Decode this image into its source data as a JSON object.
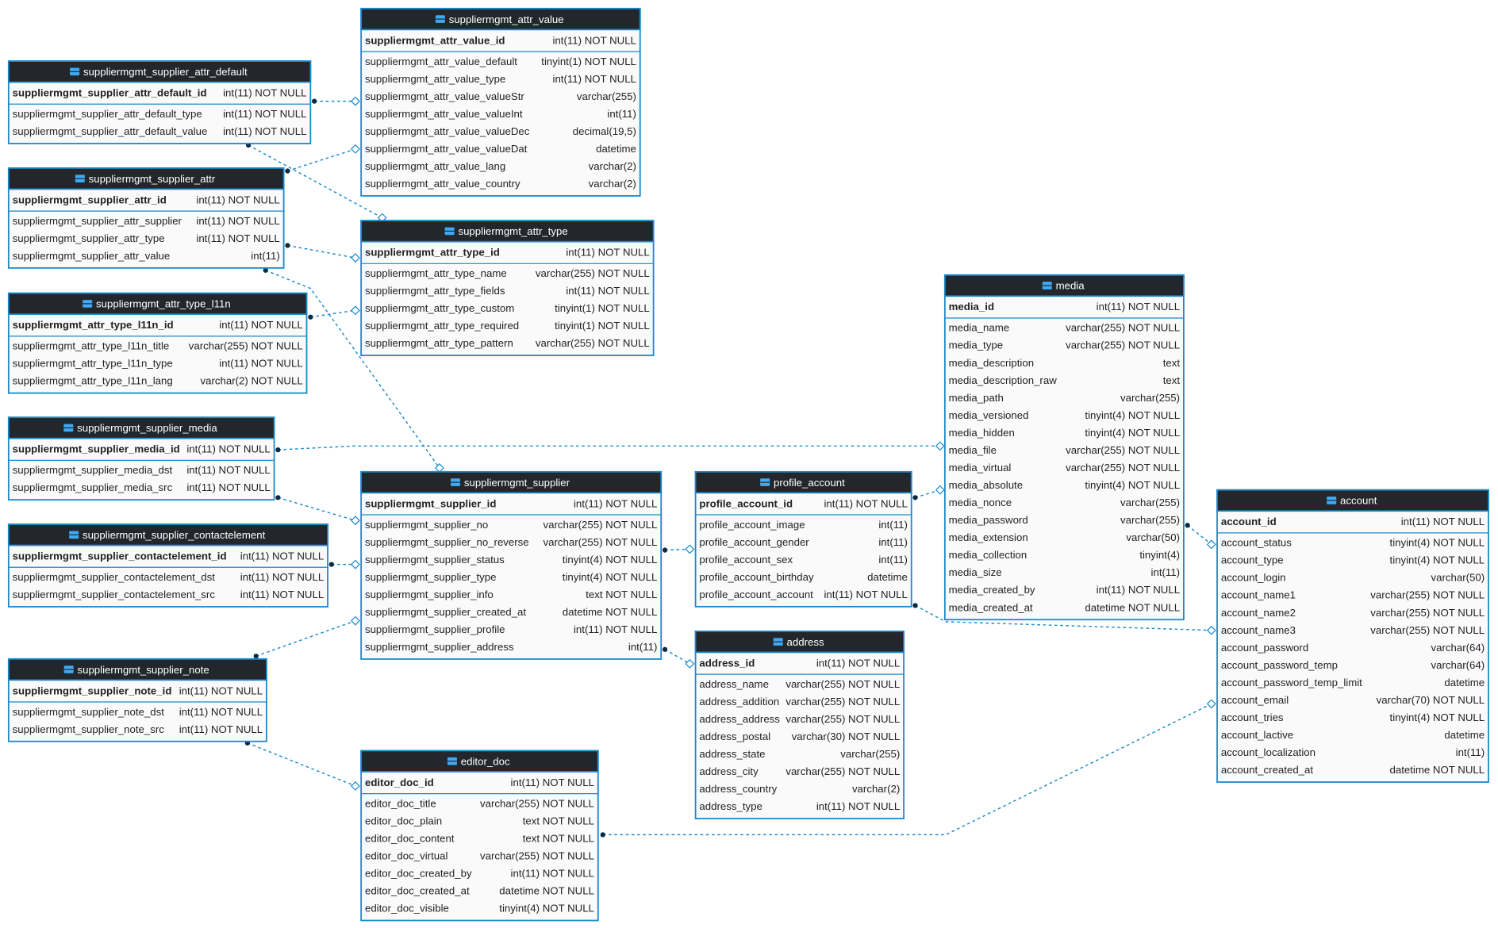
{
  "tables": [
    {
      "name": "suppliermgmt_supplier_attr_default",
      "primary_key": {
        "name": "suppliermgmt_supplier_attr_default_id",
        "type": "int(11) NOT NULL"
      },
      "columns": [
        {
          "name": "suppliermgmt_supplier_attr_default_type",
          "type": "int(11) NOT NULL"
        },
        {
          "name": "suppliermgmt_supplier_attr_default_value",
          "type": "int(11) NOT NULL"
        }
      ]
    },
    {
      "name": "suppliermgmt_attr_value",
      "primary_key": {
        "name": "suppliermgmt_attr_value_id",
        "type": "int(11) NOT NULL"
      },
      "columns": [
        {
          "name": "suppliermgmt_attr_value_default",
          "type": "tinyint(1) NOT NULL"
        },
        {
          "name": "suppliermgmt_attr_value_type",
          "type": "int(11) NOT NULL"
        },
        {
          "name": "suppliermgmt_attr_value_valueStr",
          "type": "varchar(255)"
        },
        {
          "name": "suppliermgmt_attr_value_valueInt",
          "type": "int(11)"
        },
        {
          "name": "suppliermgmt_attr_value_valueDec",
          "type": "decimal(19,5)"
        },
        {
          "name": "suppliermgmt_attr_value_valueDat",
          "type": "datetime"
        },
        {
          "name": "suppliermgmt_attr_value_lang",
          "type": "varchar(2)"
        },
        {
          "name": "suppliermgmt_attr_value_country",
          "type": "varchar(2)"
        }
      ]
    },
    {
      "name": "suppliermgmt_supplier_attr",
      "primary_key": {
        "name": "suppliermgmt_supplier_attr_id",
        "type": "int(11) NOT NULL"
      },
      "columns": [
        {
          "name": "suppliermgmt_supplier_attr_supplier",
          "type": "int(11) NOT NULL"
        },
        {
          "name": "suppliermgmt_supplier_attr_type",
          "type": "int(11) NOT NULL"
        },
        {
          "name": "suppliermgmt_supplier_attr_value",
          "type": "int(11)"
        }
      ]
    },
    {
      "name": "suppliermgmt_attr_type",
      "primary_key": {
        "name": "suppliermgmt_attr_type_id",
        "type": "int(11) NOT NULL"
      },
      "columns": [
        {
          "name": "suppliermgmt_attr_type_name",
          "type": "varchar(255) NOT NULL"
        },
        {
          "name": "suppliermgmt_attr_type_fields",
          "type": "int(11) NOT NULL"
        },
        {
          "name": "suppliermgmt_attr_type_custom",
          "type": "tinyint(1) NOT NULL"
        },
        {
          "name": "suppliermgmt_attr_type_required",
          "type": "tinyint(1) NOT NULL"
        },
        {
          "name": "suppliermgmt_attr_type_pattern",
          "type": "varchar(255) NOT NULL"
        }
      ]
    },
    {
      "name": "suppliermgmt_attr_type_l11n",
      "primary_key": {
        "name": "suppliermgmt_attr_type_l11n_id",
        "type": "int(11) NOT NULL"
      },
      "columns": [
        {
          "name": "suppliermgmt_attr_type_l11n_title",
          "type": "varchar(255) NOT NULL"
        },
        {
          "name": "suppliermgmt_attr_type_l11n_type",
          "type": "int(11) NOT NULL"
        },
        {
          "name": "suppliermgmt_attr_type_l11n_lang",
          "type": "varchar(2) NOT NULL"
        }
      ]
    },
    {
      "name": "suppliermgmt_supplier_media",
      "primary_key": {
        "name": "suppliermgmt_supplier_media_id",
        "type": "int(11) NOT NULL"
      },
      "columns": [
        {
          "name": "suppliermgmt_supplier_media_dst",
          "type": "int(11) NOT NULL"
        },
        {
          "name": "suppliermgmt_supplier_media_src",
          "type": "int(11) NOT NULL"
        }
      ]
    },
    {
      "name": "suppliermgmt_supplier",
      "primary_key": {
        "name": "suppliermgmt_supplier_id",
        "type": "int(11) NOT NULL"
      },
      "columns": [
        {
          "name": "suppliermgmt_supplier_no",
          "type": "varchar(255) NOT NULL"
        },
        {
          "name": "suppliermgmt_supplier_no_reverse",
          "type": "varchar(255) NOT NULL"
        },
        {
          "name": "suppliermgmt_supplier_status",
          "type": "tinyint(4) NOT NULL"
        },
        {
          "name": "suppliermgmt_supplier_type",
          "type": "tinyint(4) NOT NULL"
        },
        {
          "name": "suppliermgmt_supplier_info",
          "type": "text NOT NULL"
        },
        {
          "name": "suppliermgmt_supplier_created_at",
          "type": "datetime NOT NULL"
        },
        {
          "name": "suppliermgmt_supplier_profile",
          "type": "int(11) NOT NULL"
        },
        {
          "name": "suppliermgmt_supplier_address",
          "type": "int(11)"
        }
      ]
    },
    {
      "name": "profile_account",
      "primary_key": {
        "name": "profile_account_id",
        "type": "int(11) NOT NULL"
      },
      "columns": [
        {
          "name": "profile_account_image",
          "type": "int(11)"
        },
        {
          "name": "profile_account_gender",
          "type": "int(11)"
        },
        {
          "name": "profile_account_sex",
          "type": "int(11)"
        },
        {
          "name": "profile_account_birthday",
          "type": "datetime"
        },
        {
          "name": "profile_account_account",
          "type": "int(11) NOT NULL"
        }
      ]
    },
    {
      "name": "media",
      "primary_key": {
        "name": "media_id",
        "type": "int(11) NOT NULL"
      },
      "columns": [
        {
          "name": "media_name",
          "type": "varchar(255) NOT NULL"
        },
        {
          "name": "media_type",
          "type": "varchar(255) NOT NULL"
        },
        {
          "name": "media_description",
          "type": "text"
        },
        {
          "name": "media_description_raw",
          "type": "text"
        },
        {
          "name": "media_path",
          "type": "varchar(255)"
        },
        {
          "name": "media_versioned",
          "type": "tinyint(4) NOT NULL"
        },
        {
          "name": "media_hidden",
          "type": "tinyint(4) NOT NULL"
        },
        {
          "name": "media_file",
          "type": "varchar(255) NOT NULL"
        },
        {
          "name": "media_virtual",
          "type": "varchar(255) NOT NULL"
        },
        {
          "name": "media_absolute",
          "type": "tinyint(4) NOT NULL"
        },
        {
          "name": "media_nonce",
          "type": "varchar(255)"
        },
        {
          "name": "media_password",
          "type": "varchar(255)"
        },
        {
          "name": "media_extension",
          "type": "varchar(50)"
        },
        {
          "name": "media_collection",
          "type": "tinyint(4)"
        },
        {
          "name": "media_size",
          "type": "int(11)"
        },
        {
          "name": "media_created_by",
          "type": "int(11) NOT NULL"
        },
        {
          "name": "media_created_at",
          "type": "datetime NOT NULL"
        }
      ]
    },
    {
      "name": "account",
      "primary_key": {
        "name": "account_id",
        "type": "int(11) NOT NULL"
      },
      "columns": [
        {
          "name": "account_status",
          "type": "tinyint(4) NOT NULL"
        },
        {
          "name": "account_type",
          "type": "tinyint(4) NOT NULL"
        },
        {
          "name": "account_login",
          "type": "varchar(50)"
        },
        {
          "name": "account_name1",
          "type": "varchar(255) NOT NULL"
        },
        {
          "name": "account_name2",
          "type": "varchar(255) NOT NULL"
        },
        {
          "name": "account_name3",
          "type": "varchar(255) NOT NULL"
        },
        {
          "name": "account_password",
          "type": "varchar(64)"
        },
        {
          "name": "account_password_temp",
          "type": "varchar(64)"
        },
        {
          "name": "account_password_temp_limit",
          "type": "datetime"
        },
        {
          "name": "account_email",
          "type": "varchar(70) NOT NULL"
        },
        {
          "name": "account_tries",
          "type": "tinyint(4) NOT NULL"
        },
        {
          "name": "account_lactive",
          "type": "datetime"
        },
        {
          "name": "account_localization",
          "type": "int(11)"
        },
        {
          "name": "account_created_at",
          "type": "datetime NOT NULL"
        }
      ]
    },
    {
      "name": "suppliermgmt_supplier_contactelement",
      "primary_key": {
        "name": "suppliermgmt_supplier_contactelement_id",
        "type": "int(11) NOT NULL"
      },
      "columns": [
        {
          "name": "suppliermgmt_supplier_contactelement_dst",
          "type": "int(11) NOT NULL"
        },
        {
          "name": "suppliermgmt_supplier_contactelement_src",
          "type": "int(11) NOT NULL"
        }
      ]
    },
    {
      "name": "address",
      "primary_key": {
        "name": "address_id",
        "type": "int(11) NOT NULL"
      },
      "columns": [
        {
          "name": "address_name",
          "type": "varchar(255) NOT NULL"
        },
        {
          "name": "address_addition",
          "type": "varchar(255) NOT NULL"
        },
        {
          "name": "address_address",
          "type": "varchar(255) NOT NULL"
        },
        {
          "name": "address_postal",
          "type": "varchar(30) NOT NULL"
        },
        {
          "name": "address_state",
          "type": "varchar(255)"
        },
        {
          "name": "address_city",
          "type": "varchar(255) NOT NULL"
        },
        {
          "name": "address_country",
          "type": "varchar(2)"
        },
        {
          "name": "address_type",
          "type": "int(11) NOT NULL"
        }
      ]
    },
    {
      "name": "suppliermgmt_supplier_note",
      "primary_key": {
        "name": "suppliermgmt_supplier_note_id",
        "type": "int(11) NOT NULL"
      },
      "columns": [
        {
          "name": "suppliermgmt_supplier_note_dst",
          "type": "int(11) NOT NULL"
        },
        {
          "name": "suppliermgmt_supplier_note_src",
          "type": "int(11) NOT NULL"
        }
      ]
    },
    {
      "name": "editor_doc",
      "primary_key": {
        "name": "editor_doc_id",
        "type": "int(11) NOT NULL"
      },
      "columns": [
        {
          "name": "editor_doc_title",
          "type": "varchar(255) NOT NULL"
        },
        {
          "name": "editor_doc_plain",
          "type": "text NOT NULL"
        },
        {
          "name": "editor_doc_content",
          "type": "text NOT NULL"
        },
        {
          "name": "editor_doc_virtual",
          "type": "varchar(255) NOT NULL"
        },
        {
          "name": "editor_doc_created_by",
          "type": "int(11) NOT NULL"
        },
        {
          "name": "editor_doc_created_at",
          "type": "datetime NOT NULL"
        },
        {
          "name": "editor_doc_visible",
          "type": "tinyint(4) NOT NULL"
        }
      ]
    }
  ]
}
